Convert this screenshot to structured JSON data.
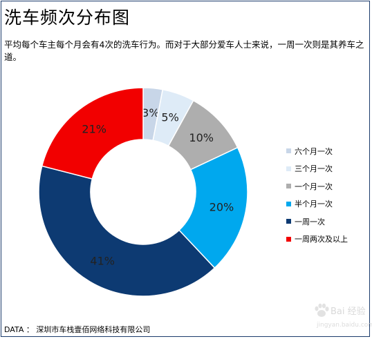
{
  "title": "洗车频次分布图",
  "subtitle": "平均每个车主每个月会有4次的洗车行为。而对于大部分爱车人士来说，一周一次则是其养车之道。",
  "source": "DATA ： 深圳市车栈壹佰网络科技有限公司",
  "watermark": {
    "text": "Bai 经验",
    "url": "jingyan.baidu.com"
  },
  "chart_data": {
    "type": "pie",
    "donut": true,
    "title": "洗车频次分布图",
    "legend_position": "right",
    "series": [
      {
        "name": "六个月一次",
        "value": 3,
        "label": "3%",
        "color": "#c8d6e8"
      },
      {
        "name": "三个月一次",
        "value": 5,
        "label": "5%",
        "color": "#deebf7"
      },
      {
        "name": "一个月一次",
        "value": 10,
        "label": "10%",
        "color": "#aeaeae"
      },
      {
        "name": "半个月一次",
        "value": 20,
        "label": "20%",
        "color": "#00a8ee"
      },
      {
        "name": "一周一次",
        "value": 41,
        "label": "41%",
        "color": "#0d3a72"
      },
      {
        "name": "一周两次及以上",
        "value": 21,
        "label": "21%",
        "color": "#f20000"
      }
    ]
  }
}
